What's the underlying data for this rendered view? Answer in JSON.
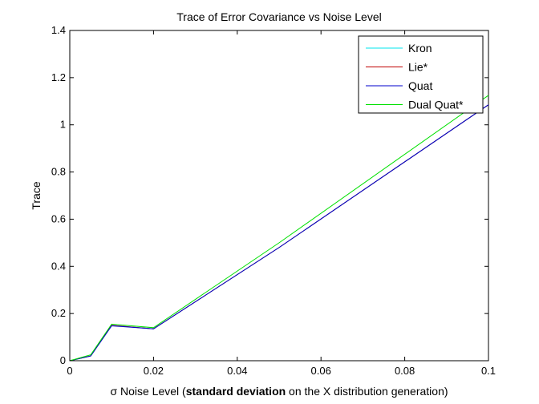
{
  "chart_data": {
    "type": "line",
    "title": "Trace of Error Covariance vs Noise Level",
    "xlabel": {
      "prefix": "σ  Noise Level (",
      "bold": "standard deviation",
      "suffix": " on the X distribution generation)"
    },
    "ylabel": "Trace",
    "xlim": [
      0,
      0.1
    ],
    "ylim": [
      0,
      1.4
    ],
    "xticks": [
      0,
      0.02,
      0.04,
      0.06,
      0.08,
      0.1
    ],
    "xtick_labels": [
      "0",
      "0.02",
      "0.04",
      "0.06",
      "0.08",
      "0.1"
    ],
    "yticks": [
      0,
      0.2,
      0.4,
      0.6,
      0.8,
      1,
      1.2,
      1.4
    ],
    "ytick_labels": [
      "0",
      "0.2",
      "0.4",
      "0.6",
      "0.8",
      "1",
      "1.2",
      "1.4"
    ],
    "grid": false,
    "legend_position": "top-right",
    "series": [
      {
        "name": "Kron",
        "color": "#00e5ee",
        "x": [
          0,
          0.005,
          0.01,
          0.02,
          0.05,
          0.1
        ],
        "y": [
          0,
          0.02,
          0.15,
          0.135,
          0.48,
          1.085
        ]
      },
      {
        "name": "Lie*",
        "color": "#c00000",
        "x": [
          0,
          0.005,
          0.01,
          0.02,
          0.05,
          0.1
        ],
        "y": [
          0,
          0.02,
          0.15,
          0.135,
          0.48,
          1.085
        ]
      },
      {
        "name": "Quat",
        "color": "#0000cc",
        "x": [
          0,
          0.005,
          0.01,
          0.02,
          0.05,
          0.1
        ],
        "y": [
          0,
          0.02,
          0.148,
          0.135,
          0.48,
          1.085
        ]
      },
      {
        "name": "Dual Quat*",
        "color": "#00e000",
        "x": [
          0,
          0.005,
          0.01,
          0.02,
          0.05,
          0.1
        ],
        "y": [
          0,
          0.025,
          0.155,
          0.14,
          0.5,
          1.125
        ]
      }
    ]
  }
}
